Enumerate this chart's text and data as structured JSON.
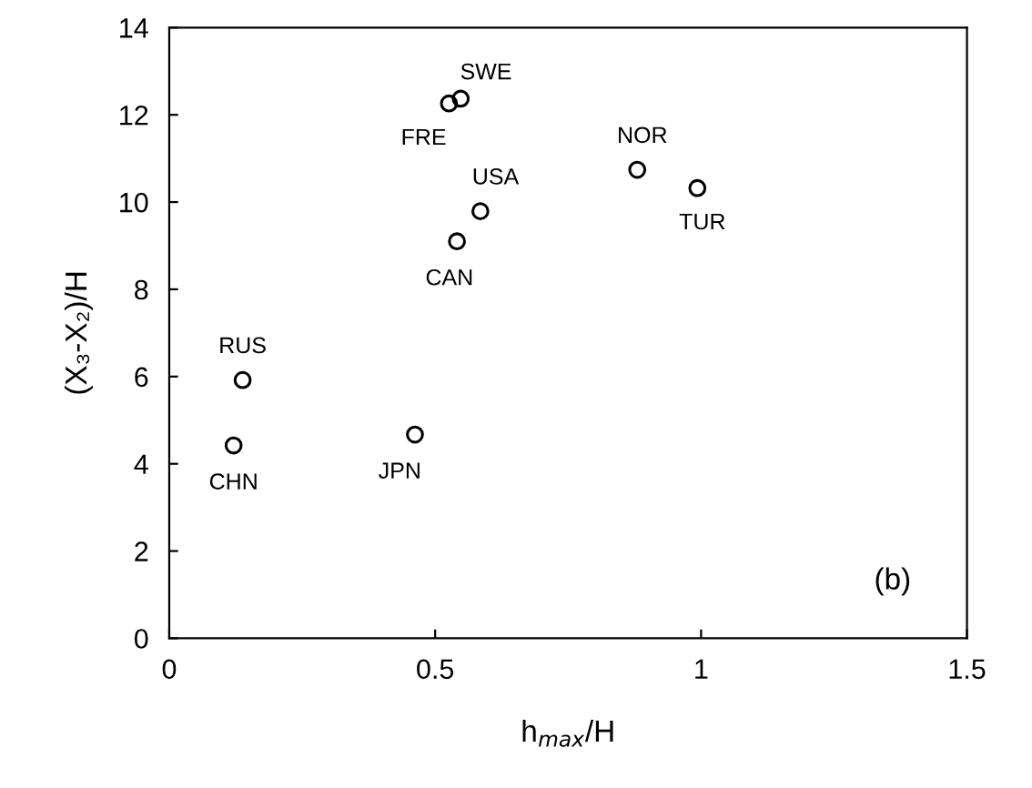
{
  "chart_data": {
    "type": "scatter",
    "xlabel": "h$_{max}$/H",
    "ylabel": "(X₃-X₂)/H",
    "series": [
      {
        "color": "#000000",
        "x": [
          0.526,
          0.548,
          0.585,
          0.541,
          0.88,
          0.993,
          0.138,
          0.121,
          0.462
        ],
        "values": [
          12.26,
          12.37,
          9.79,
          9.1,
          10.74,
          10.32,
          5.92,
          4.42,
          4.67
        ]
      }
    ],
    "marker": "circle",
    "annotations": [
      {
        "text": "FRE",
        "x": 0.526,
        "y": 12.26
      },
      {
        "text": "SWE",
        "x": 0.548,
        "y": 12.37
      },
      {
        "text": "USA",
        "x": 0.585,
        "y": 9.79
      },
      {
        "text": "CAN",
        "x": 0.541,
        "y": 9.1
      },
      {
        "text": "NOR",
        "x": 0.88,
        "y": 10.74
      },
      {
        "text": "TUR",
        "x": 0.993,
        "y": 10.32
      },
      {
        "text": "RUS",
        "x": 0.138,
        "y": 5.92
      },
      {
        "text": "CHN",
        "x": 0.121,
        "y": 4.42
      },
      {
        "text": "JPN",
        "x": 0.462,
        "y": 4.67
      },
      "(b)"
    ],
    "xlim": [
      0,
      1.5
    ],
    "xticks": [
      0,
      0.5,
      1,
      1.5
    ],
    "ylim": [
      0,
      14
    ],
    "yticks": [
      0,
      2,
      4,
      6,
      8,
      10,
      12,
      14
    ],
    "grid": false,
    "legend": false
  }
}
